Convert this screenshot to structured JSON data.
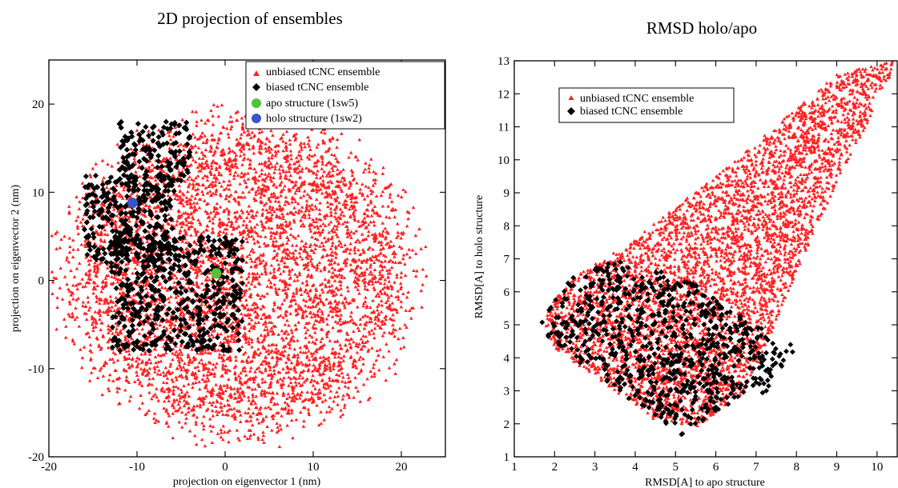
{
  "chart_data": [
    {
      "type": "scatter",
      "title": "2D projection of ensembles",
      "xlabel": "projection on eigenvector 1 (nm)",
      "ylabel": "projection on eigenvector 2 (nm)",
      "xlim": [
        -20,
        25
      ],
      "ylim": [
        -20,
        25
      ],
      "xticks": [
        -20,
        -10,
        0,
        10,
        20
      ],
      "yticks": [
        -20,
        -10,
        0,
        10,
        20
      ],
      "legend_position": "top-right",
      "series": [
        {
          "name": "unbiased tCNC ensemble",
          "marker": "triangle",
          "color": "#ff2020",
          "distribution": {
            "center": [
              1.5,
              0.5
            ],
            "radius_x": 22,
            "radius_y": 20,
            "approx_points": 9000
          },
          "extent": {
            "x": [
              -20,
              24
            ],
            "y": [
              -19,
              21
            ]
          }
        },
        {
          "name": "biased tCNC ensemble",
          "marker": "diamond",
          "color": "#000000",
          "clusters": [
            {
              "x_range": [
                -12,
                -4
              ],
              "y_range": [
                10,
                18
              ]
            },
            {
              "x_range": [
                -16,
                -6
              ],
              "y_range": [
                2,
                12
              ]
            },
            {
              "x_range": [
                -13,
                2
              ],
              "y_range": [
                -8,
                5
              ]
            }
          ],
          "extent": {
            "x": [
              -17,
              4
            ],
            "y": [
              -9,
              18
            ]
          }
        },
        {
          "name": "apo structure (1sw5)",
          "marker": "circle",
          "color": "#4fc43a",
          "x": [
            -1
          ],
          "y": [
            0.8
          ]
        },
        {
          "name": "holo structure (1sw2)",
          "marker": "circle",
          "color": "#3a55c4",
          "x": [
            -10.5
          ],
          "y": [
            8.8
          ]
        }
      ]
    },
    {
      "type": "scatter",
      "title": "RMSD holo/apo",
      "xlabel": "RMSD[A] to apo structure",
      "ylabel": "RMSD[A] to holo structure",
      "xlim": [
        1,
        10.5
      ],
      "ylim": [
        1,
        13
      ],
      "xticks": [
        1,
        2,
        3,
        4,
        5,
        6,
        7,
        8,
        9,
        10
      ],
      "yticks": [
        1,
        2,
        3,
        4,
        5,
        6,
        7,
        8,
        9,
        10,
        11,
        12,
        13
      ],
      "legend_position": "top-left",
      "series": [
        {
          "name": "unbiased tCNC ensemble",
          "marker": "triangle",
          "color": "#ff2020",
          "region_polygon": [
            [
              1.7,
              5.2
            ],
            [
              2.3,
              6.3
            ],
            [
              4,
              7.6
            ],
            [
              6.5,
              10
            ],
            [
              9,
              12.6
            ],
            [
              10.4,
              13
            ],
            [
              10.3,
              12.4
            ],
            [
              9,
              9.3
            ],
            [
              8,
              6.6
            ],
            [
              7.3,
              4.5
            ],
            [
              6.6,
              2.8
            ],
            [
              5.5,
              1.9
            ],
            [
              4.5,
              2.1
            ],
            [
              2,
              4.3
            ]
          ],
          "approx_points": 8000
        },
        {
          "name": "biased tCNC ensemble",
          "marker": "diamond",
          "color": "#000000",
          "region_polygon": [
            [
              1.6,
              5
            ],
            [
              2.5,
              6.6
            ],
            [
              3.8,
              7
            ],
            [
              5.5,
              6.2
            ],
            [
              7,
              5
            ],
            [
              8,
              4.3
            ],
            [
              7.3,
              3
            ],
            [
              6,
              2.4
            ],
            [
              5.2,
              1.6
            ],
            [
              4.5,
              2.2
            ],
            [
              3,
              3.5
            ],
            [
              1.8,
              4.5
            ]
          ],
          "approx_points": 1100
        }
      ]
    }
  ]
}
